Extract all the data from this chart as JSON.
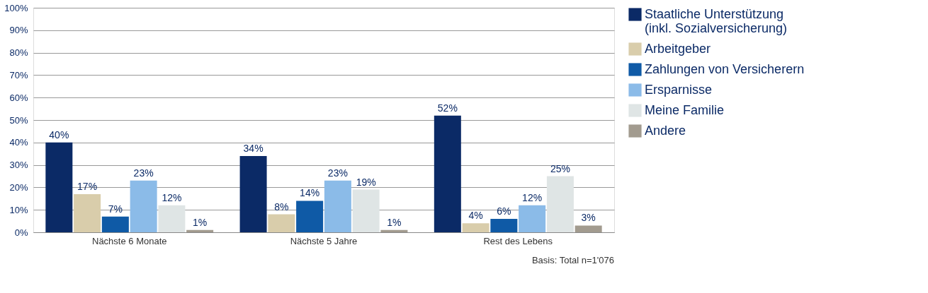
{
  "chart_data": {
    "type": "bar",
    "categories": [
      "Nächste 6 Monate",
      "Nächste 5 Jahre",
      "Rest des Lebens"
    ],
    "series": [
      {
        "name": "Staatliche Unterstützung\n(inkl. Sozialversicherung)",
        "color": "#0b2a66",
        "values": [
          40,
          34,
          52
        ],
        "value_labels": [
          "40%",
          "34%",
          "52%"
        ]
      },
      {
        "name": "Arbeitgeber",
        "color": "#d9cdab",
        "values": [
          17,
          8,
          4
        ],
        "value_labels": [
          "17%",
          "8%",
          "4%"
        ]
      },
      {
        "name": "Zahlungen von Versicherern",
        "color": "#0f5aa6",
        "values": [
          7,
          14,
          6
        ],
        "value_labels": [
          "7%",
          "14%",
          "6%"
        ]
      },
      {
        "name": "Ersparnisse",
        "color": "#8bbbe8",
        "values": [
          23,
          23,
          12
        ],
        "value_labels": [
          "23%",
          "23%",
          "12%"
        ]
      },
      {
        "name": "Meine Familie",
        "color": "#dfe5e5",
        "values": [
          12,
          19,
          25
        ],
        "value_labels": [
          "12%",
          "19%",
          "25%"
        ]
      },
      {
        "name": "Andere",
        "color": "#a29b8f",
        "values": [
          1,
          1,
          3
        ],
        "value_labels": [
          "1%",
          "1%",
          "3%"
        ]
      }
    ],
    "ylim": [
      0,
      100
    ],
    "yticks": [
      {
        "value": 0,
        "label": "0%"
      },
      {
        "value": 10,
        "label": "10%"
      },
      {
        "value": 20,
        "label": "20%"
      },
      {
        "value": 30,
        "label": "30%"
      },
      {
        "value": 40,
        "label": "40%"
      },
      {
        "value": 50,
        "label": "50%"
      },
      {
        "value": 60,
        "label": "60%"
      },
      {
        "value": 70,
        "label": "70%"
      },
      {
        "value": 80,
        "label": "80%"
      },
      {
        "value": 90,
        "label": "90%"
      },
      {
        "value": 100,
        "label": "100%"
      }
    ],
    "grid": "y",
    "legend": "right",
    "annotations": [
      "Basis: Total n=1'076"
    ]
  }
}
